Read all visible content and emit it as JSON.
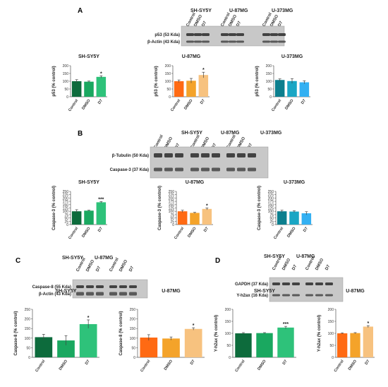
{
  "panels": [
    {
      "id": "A",
      "letter": "A",
      "blot": {
        "groups": [
          "SH-SY5Y",
          "U-87MG",
          "U-373MG"
        ],
        "lanes": [
          "Control",
          "DMSO",
          "D7"
        ],
        "rows": [
          "p53 (53 Kda)",
          "β-Actin (43 Kda)"
        ]
      },
      "charts": [
        {
          "title": "SH-SY5Y",
          "ylabel": "p53 (% control)",
          "categories": [
            "Control",
            "DMSO",
            "D7"
          ],
          "values": [
            100,
            97,
            128
          ],
          "errors": [
            10,
            4,
            7
          ],
          "sig": [
            "",
            "",
            "*"
          ],
          "ylim": [
            0,
            200
          ],
          "yticks": [
            0,
            50,
            100,
            150,
            200
          ],
          "colors": [
            "#0d6b3c",
            "#1aa860",
            "#2ec27a"
          ]
        },
        {
          "title": "U-87MG",
          "ylabel": "p53 (% control)",
          "categories": [
            "Control",
            "DMSO",
            "D7"
          ],
          "values": [
            100,
            103,
            140
          ],
          "errors": [
            8,
            15,
            18
          ],
          "sig": [
            "",
            "",
            "*"
          ],
          "ylim": [
            0,
            200
          ],
          "yticks": [
            0,
            50,
            100,
            150,
            200
          ],
          "colors": [
            "#ff6a13",
            "#f4a32a",
            "#f7c27f"
          ]
        },
        {
          "title": "U-373MG",
          "ylabel": "p53 (% control)",
          "categories": [
            "Control",
            "DMSO",
            "D7"
          ],
          "values": [
            108,
            101,
            93
          ],
          "errors": [
            7,
            15,
            10
          ],
          "sig": [
            "",
            "",
            ""
          ],
          "ylim": [
            0,
            200
          ],
          "yticks": [
            0,
            50,
            100,
            150,
            200
          ],
          "colors": [
            "#0c7f8e",
            "#1aa6c4",
            "#33b0f2"
          ]
        }
      ]
    },
    {
      "id": "B",
      "letter": "B",
      "blot": {
        "groups": [
          "SH-SY5Y",
          "U-87MG",
          "U-373MG"
        ],
        "lanes": [
          "Control",
          "DMSO",
          "D7"
        ],
        "rows": [
          "β-Tubulin (50 Kda)",
          "Caspase-3 (37 Kda)"
        ]
      },
      "charts": [
        {
          "title": "SH-SY5Y",
          "ylabel": "Caspase-3 (% control)",
          "categories": [
            "Control",
            "DMSO",
            "D7"
          ],
          "values": [
            100,
            105,
            168
          ],
          "errors": [
            12,
            3,
            5
          ],
          "sig": [
            "",
            "",
            "***"
          ],
          "ylim": [
            0,
            250
          ],
          "yticks": [
            0,
            25,
            50,
            75,
            100,
            125,
            150,
            175,
            200,
            225,
            250
          ],
          "colors": [
            "#0d6b3c",
            "#1aa860",
            "#2ec27a"
          ]
        },
        {
          "title": "U-87MG",
          "ylabel": "Caspase-3 (% control)",
          "categories": [
            "Control",
            "DMSO",
            "D7"
          ],
          "values": [
            100,
            88,
            118
          ],
          "errors": [
            8,
            4,
            7
          ],
          "sig": [
            "",
            "",
            "*"
          ],
          "ylim": [
            0,
            250
          ],
          "yticks": [
            0,
            25,
            50,
            75,
            100,
            125,
            150,
            175,
            200,
            225,
            250
          ],
          "colors": [
            "#ff6a13",
            "#f4a32a",
            "#f7c27f"
          ]
        },
        {
          "title": "U-373MG",
          "ylabel": "Caspase-3 (% control)",
          "categories": [
            "Control",
            "DMSO",
            "D7"
          ],
          "values": [
            100,
            98,
            85
          ],
          "errors": [
            8,
            6,
            12
          ],
          "sig": [
            "",
            "",
            ""
          ],
          "ylim": [
            0,
            250
          ],
          "yticks": [
            0,
            25,
            50,
            75,
            100,
            125,
            150,
            175,
            200,
            225,
            250
          ],
          "colors": [
            "#0c7f8e",
            "#1aa6c4",
            "#33b0f2"
          ]
        }
      ]
    },
    {
      "id": "C",
      "letter": "C",
      "blot": {
        "groups": [
          "SH-SY5Y",
          "U-87MG"
        ],
        "lanes": [
          "Control",
          "DMSO",
          "D7"
        ],
        "rows": [
          "Caspase-8 (55 Kda)",
          "β-Actin (43 Kda)"
        ]
      },
      "charts": [
        {
          "title": "SH-SY5Y",
          "ylabel": "Caspase-8 (% control)",
          "categories": [
            "Control",
            "DMSO",
            "D7"
          ],
          "values": [
            105,
            88,
            173
          ],
          "errors": [
            15,
            25,
            22
          ],
          "sig": [
            "",
            "",
            "*"
          ],
          "ylim": [
            0,
            250
          ],
          "yticks": [
            0,
            50,
            100,
            150,
            200,
            250
          ],
          "colors": [
            "#0d6b3c",
            "#1aa860",
            "#2ec27a"
          ]
        },
        {
          "title": "U-87MG",
          "ylabel": "Caspase-8 (% control)",
          "categories": [
            "Control",
            "DMSO",
            "D7"
          ],
          "values": [
            103,
            98,
            148
          ],
          "errors": [
            15,
            8,
            6
          ],
          "sig": [
            "",
            "",
            "*"
          ],
          "ylim": [
            0,
            250
          ],
          "yticks": [
            0,
            50,
            100,
            150,
            200,
            250
          ],
          "colors": [
            "#ff6a13",
            "#f4a32a",
            "#f7c27f"
          ]
        }
      ]
    },
    {
      "id": "D",
      "letter": "D",
      "blot": {
        "groups": [
          "SH-SY5Y",
          "U-87MG"
        ],
        "lanes": [
          "Control",
          "DMSO",
          "D7"
        ],
        "rows": [
          "GAPDH (37 Kda)",
          "Y-h2ax (16 Kda)"
        ]
      },
      "charts": [
        {
          "title": "SH-SY5Y",
          "ylabel": "Y-h2ax (% control)",
          "categories": [
            "Control",
            "DMSO",
            "D7"
          ],
          "values": [
            100,
            101,
            124
          ],
          "errors": [
            3,
            2,
            5
          ],
          "sig": [
            "",
            "",
            "***"
          ],
          "ylim": [
            0,
            200
          ],
          "yticks": [
            0,
            50,
            100,
            150,
            200
          ],
          "colors": [
            "#0d6b3c",
            "#1aa860",
            "#2ec27a"
          ]
        },
        {
          "title": "U-87MG",
          "ylabel": "Y-h2ax (% control)",
          "categories": [
            "Control",
            "DMSO",
            "D7"
          ],
          "values": [
            100,
            101,
            128
          ],
          "errors": [
            2,
            2,
            4
          ],
          "sig": [
            "",
            "",
            "*"
          ],
          "ylim": [
            0,
            200
          ],
          "yticks": [
            0,
            50,
            100,
            150,
            200
          ],
          "colors": [
            "#ff6a13",
            "#f4a32a",
            "#f7c27f"
          ]
        }
      ]
    }
  ]
}
